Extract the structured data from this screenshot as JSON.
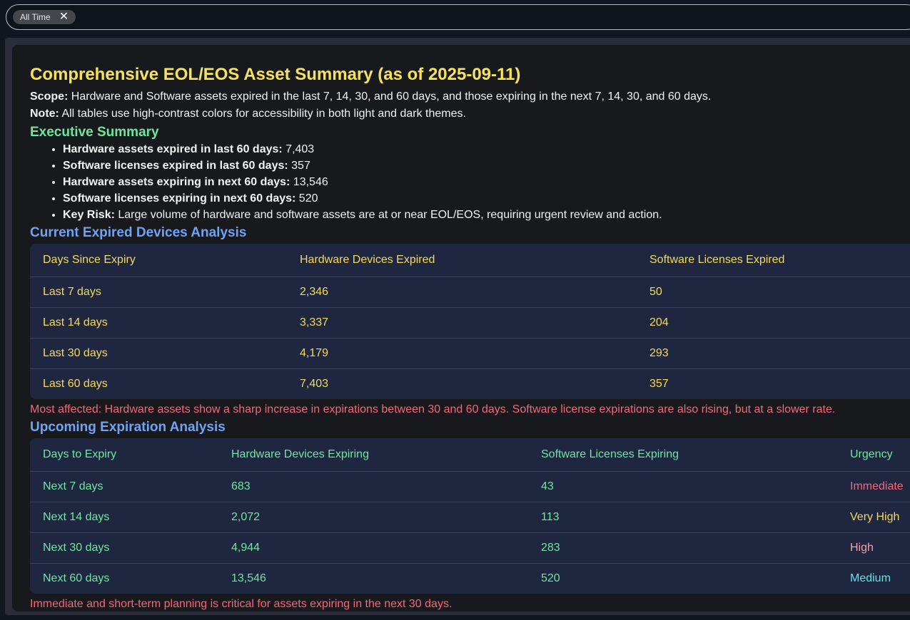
{
  "filter": {
    "chip_label": "All Time"
  },
  "report": {
    "title": "Comprehensive EOL/EOS Asset Summary (as of 2025-09-11)",
    "scope_label": "Scope:",
    "scope_text": " Hardware and Software assets expired in the last 7, 14, 30, and 60 days, and those expiring in the next 7, 14, 30, and 60 days.",
    "note_label": "Note:",
    "note_text": " All tables use high-contrast colors for accessibility in both light and dark themes.",
    "exec_heading": "Executive Summary",
    "exec_items": [
      {
        "label": "Hardware assets expired in last 60 days:",
        "value": " 7,403"
      },
      {
        "label": "Software licenses expired in last 60 days:",
        "value": " 357"
      },
      {
        "label": "Hardware assets expiring in next 60 days:",
        "value": " 13,546"
      },
      {
        "label": "Software licenses expiring in next 60 days:",
        "value": " 520"
      },
      {
        "label": "Key Risk:",
        "value": " Large volume of hardware and software assets are at or near EOL/EOS, requiring urgent review and action."
      }
    ],
    "expired_heading": "Current Expired Devices Analysis",
    "expired_table": {
      "headers": [
        "Days Since Expiry",
        "Hardware Devices Expired",
        "Software Licenses Expired"
      ],
      "rows": [
        [
          "Last 7 days",
          "2,346",
          "50"
        ],
        [
          "Last 14 days",
          "3,337",
          "204"
        ],
        [
          "Last 30 days",
          "4,179",
          "293"
        ],
        [
          "Last 60 days",
          "7,403",
          "357"
        ]
      ]
    },
    "expired_note": "Most affected: Hardware assets show a sharp increase in expirations between 30 and 60 days. Software license expirations are also rising, but at a slower rate.",
    "upcoming_heading": "Upcoming Expiration Analysis",
    "upcoming_table": {
      "headers": [
        "Days to Expiry",
        "Hardware Devices Expiring",
        "Software Licenses Expiring",
        "Urgency"
      ],
      "rows": [
        [
          "Next 7 days",
          "683",
          "43",
          "Immediate"
        ],
        [
          "Next 14 days",
          "2,072",
          "113",
          "Very High"
        ],
        [
          "Next 30 days",
          "4,944",
          "283",
          "High"
        ],
        [
          "Next 60 days",
          "13,546",
          "520",
          "Medium"
        ]
      ]
    },
    "upcoming_note": "Immediate and short-term planning is critical for assets expiring in the next 30 days.",
    "urgency_colors": {
      "Immediate": "#f06a7a",
      "Very High": "#f5d95a",
      "High": "#f2a2a8",
      "Medium": "#6fdfe6"
    }
  }
}
